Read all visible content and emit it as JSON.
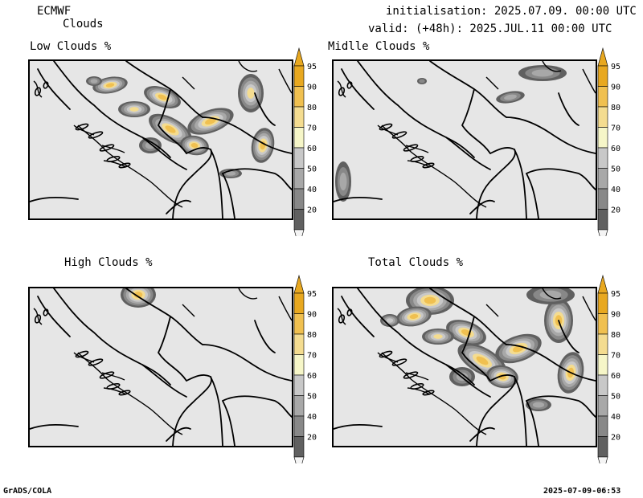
{
  "header": {
    "model": "ECMWF",
    "product": "Clouds",
    "init_text": "initialisation: 2025.07.09. 00:00 UTC",
    "valid_text": "valid: (+48h): 2025.JUL.11 00:00 UTC"
  },
  "panels": [
    {
      "title": "Low Clouds %"
    },
    {
      "title": "Midlle Clouds %"
    },
    {
      "title": "High Clouds %"
    },
    {
      "title": "Total Clouds %"
    }
  ],
  "colorbar": {
    "labels": [
      "95",
      "90",
      "80",
      "70",
      "60",
      "50",
      "40",
      "20"
    ],
    "colors": [
      "#e8a820",
      "#f0c050",
      "#f4dc90",
      "#f6f6c8",
      "#c8c8c8",
      "#a8a8a8",
      "#888888",
      "#606060"
    ]
  },
  "palette": {
    "background": "#e6e6e6",
    "c20": "#606060",
    "c40": "#888888",
    "c50": "#a8a8a8",
    "c60": "#c8c8c8",
    "c80": "#f4dc90",
    "c90": "#f0c050",
    "c95": "#e8a820"
  },
  "footer": {
    "left": "GrADS/COLA",
    "right": "2025-07-09-06:53"
  }
}
